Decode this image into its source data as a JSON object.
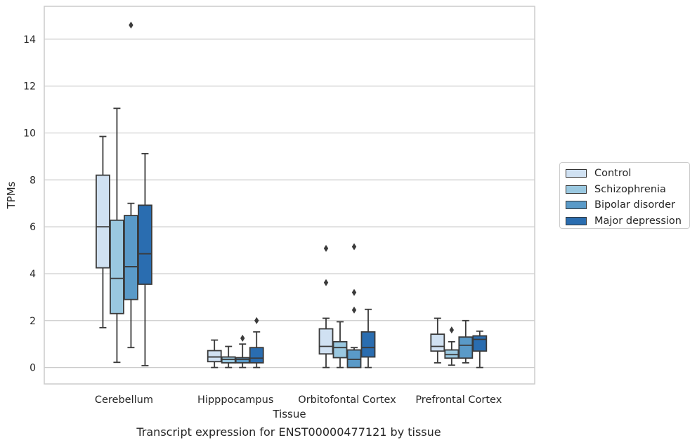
{
  "chart_data": {
    "type": "box",
    "ylabel": "TPMs",
    "xlabel": "Tissue",
    "ylim": [
      -0.7,
      15.4
    ],
    "yticks": [
      0,
      2,
      4,
      6,
      8,
      10,
      12,
      14
    ],
    "categories": [
      "Cerebellum",
      "Hipppocampus",
      "Orbitofontal Cortex",
      "Prefrontal Cortex"
    ],
    "grid": true,
    "legend_position": "right",
    "series": [
      {
        "name": "Control",
        "color": "#d0e1f2",
        "boxes": [
          {
            "whislo": 1.7,
            "q1": 4.25,
            "med": 6.0,
            "q3": 8.2,
            "whishi": 9.85,
            "fliers": []
          },
          {
            "whislo": 0.0,
            "q1": 0.25,
            "med": 0.45,
            "q3": 0.72,
            "whishi": 1.17,
            "fliers": []
          },
          {
            "whislo": 0.0,
            "q1": 0.58,
            "med": 0.9,
            "q3": 1.65,
            "whishi": 2.1,
            "fliers": [
              3.62,
              5.08
            ]
          },
          {
            "whislo": 0.2,
            "q1": 0.7,
            "med": 0.9,
            "q3": 1.42,
            "whishi": 2.1,
            "fliers": []
          }
        ]
      },
      {
        "name": "Schizophrenia",
        "color": "#9ac8e0",
        "boxes": [
          {
            "whislo": 0.22,
            "q1": 2.3,
            "med": 3.8,
            "q3": 6.28,
            "whishi": 11.05,
            "fliers": []
          },
          {
            "whislo": 0.0,
            "q1": 0.2,
            "med": 0.35,
            "q3": 0.45,
            "whishi": 0.9,
            "fliers": []
          },
          {
            "whislo": 0.0,
            "q1": 0.42,
            "med": 0.85,
            "q3": 1.1,
            "whishi": 1.95,
            "fliers": []
          },
          {
            "whislo": 0.1,
            "q1": 0.4,
            "med": 0.55,
            "q3": 0.75,
            "whishi": 1.1,
            "fliers": [
              1.6
            ]
          }
        ]
      },
      {
        "name": "Bipolar disorder",
        "color": "#5a9ac8",
        "boxes": [
          {
            "whislo": 0.85,
            "q1": 2.9,
            "med": 4.3,
            "q3": 6.48,
            "whishi": 7.0,
            "fliers": [
              14.6
            ]
          },
          {
            "whislo": 0.0,
            "q1": 0.2,
            "med": 0.35,
            "q3": 0.42,
            "whishi": 1.0,
            "fliers": [
              1.25
            ]
          },
          {
            "whislo": 0.0,
            "q1": 0.0,
            "med": 0.35,
            "q3": 0.75,
            "whishi": 0.85,
            "fliers": [
              2.45,
              3.2,
              5.15
            ]
          },
          {
            "whislo": 0.2,
            "q1": 0.4,
            "med": 0.95,
            "q3": 1.3,
            "whishi": 2.0,
            "fliers": []
          }
        ]
      },
      {
        "name": "Major depression",
        "color": "#2a6db0",
        "boxes": [
          {
            "whislo": 0.08,
            "q1": 3.55,
            "med": 4.85,
            "q3": 6.92,
            "whishi": 9.12,
            "fliers": []
          },
          {
            "whislo": 0.0,
            "q1": 0.2,
            "med": 0.4,
            "q3": 0.85,
            "whishi": 1.52,
            "fliers": [
              2.0
            ]
          },
          {
            "whislo": 0.0,
            "q1": 0.45,
            "med": 0.85,
            "q3": 1.52,
            "whishi": 2.48,
            "fliers": []
          },
          {
            "whislo": 0.0,
            "q1": 0.7,
            "med": 1.2,
            "q3": 1.35,
            "whishi": 1.55,
            "fliers": []
          }
        ]
      }
    ]
  },
  "caption": "Transcript expression for ENST00000477121 by tissue"
}
